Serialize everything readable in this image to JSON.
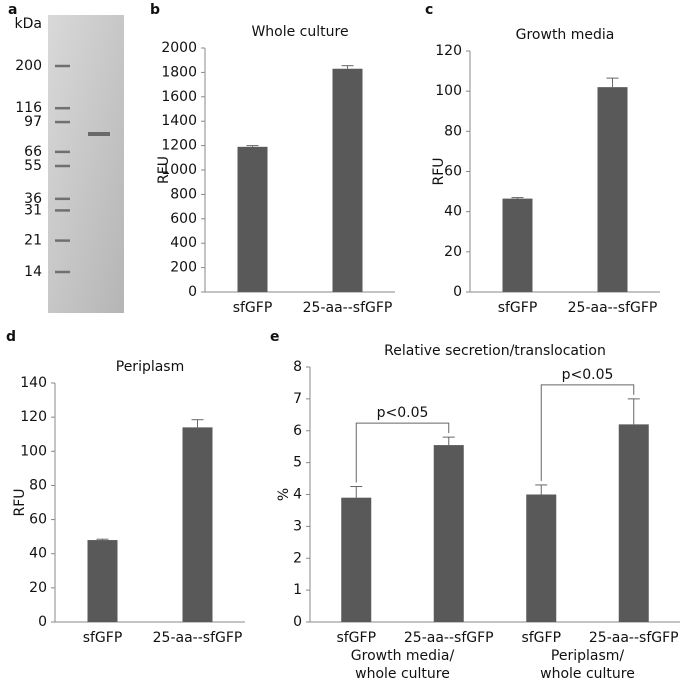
{
  "chart_data": [
    {
      "type": "gel",
      "panel": "a",
      "unit": "kDa",
      "markers": [
        200,
        116,
        97,
        66,
        55,
        36,
        31,
        21,
        14
      ]
    },
    {
      "type": "bar",
      "panel": "b",
      "title": "Whole culture",
      "ylabel": "RFU",
      "color": "#595959",
      "categories": [
        "sfGFP",
        "25-aa--sfGFP"
      ],
      "values": [
        1190,
        1830
      ],
      "errors": [
        10,
        25
      ],
      "ylim": [
        0,
        2000
      ],
      "yticks": [
        0,
        200,
        400,
        600,
        800,
        1000,
        1200,
        1400,
        1600,
        1800,
        2000
      ]
    },
    {
      "type": "bar",
      "panel": "c",
      "title": "Growth media",
      "ylabel": "RFU",
      "color": "#595959",
      "categories": [
        "sfGFP",
        "25-aa--sfGFP"
      ],
      "values": [
        46.5,
        102
      ],
      "errors": [
        0.5,
        4.5
      ],
      "ylim": [
        0,
        120
      ],
      "yticks": [
        0,
        20,
        40,
        60,
        80,
        100,
        120
      ]
    },
    {
      "type": "bar",
      "panel": "d",
      "title": "Periplasm",
      "ylabel": "RFU",
      "color": "#595959",
      "categories": [
        "sfGFP",
        "25-aa--sfGFP"
      ],
      "values": [
        48,
        114
      ],
      "errors": [
        0.5,
        4.5
      ],
      "ylim": [
        0,
        140
      ],
      "yticks": [
        0,
        20,
        40,
        60,
        80,
        100,
        120,
        140
      ]
    },
    {
      "type": "bar",
      "panel": "e",
      "title": "Relative secretion/translocation",
      "ylabel": "%",
      "color": "#595959",
      "categories": [
        "sfGFP",
        "25-aa--sfGFP",
        "sfGFP",
        "25-aa--sfGFP"
      ],
      "values": [
        3.9,
        5.55,
        4.0,
        6.2
      ],
      "errors": [
        0.35,
        0.25,
        0.3,
        0.8
      ],
      "groups": [
        [
          "Growth media/",
          "whole culture"
        ],
        [
          "Periplasm/",
          "whole culture"
        ]
      ],
      "annotations": [
        "p<0.05",
        "p<0.05"
      ],
      "ylim": [
        0,
        8
      ],
      "yticks": [
        0,
        1,
        2,
        3,
        4,
        5,
        6,
        7,
        8
      ]
    }
  ]
}
